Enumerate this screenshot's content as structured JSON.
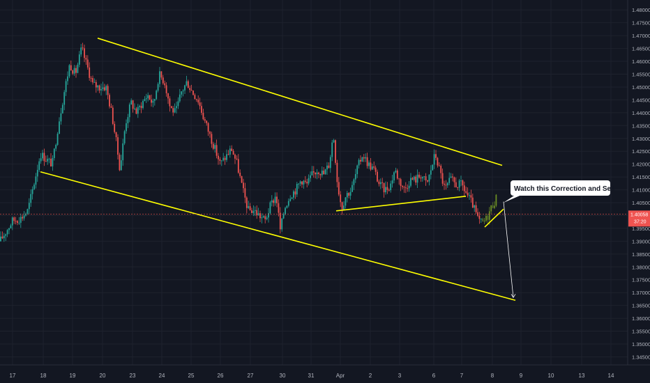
{
  "chart_data": {
    "type": "candlestick",
    "y_axis": {
      "side": "right",
      "ylim": [
        1.3435,
        1.4825
      ],
      "ticks": [
        "1.48000",
        "1.47500",
        "1.47000",
        "1.46500",
        "1.46000",
        "1.45500",
        "1.45000",
        "1.44500",
        "1.44000",
        "1.43500",
        "1.43000",
        "1.42500",
        "1.42000",
        "1.41500",
        "1.41000",
        "1.40500",
        "1.40000",
        "1.39500",
        "1.39000",
        "1.38500",
        "1.38000",
        "1.37500",
        "1.37000",
        "1.36500",
        "1.36000",
        "1.35500",
        "1.35000",
        "1.34500"
      ]
    },
    "x_axis": {
      "ticks": [
        "17",
        "18",
        "19",
        "20",
        "23",
        "24",
        "25",
        "26",
        "27",
        "30",
        "31",
        "Apr",
        "2",
        "3",
        "6",
        "7",
        "8",
        "9",
        "10",
        "13",
        "14"
      ]
    },
    "current_price": {
      "label": "1.40058",
      "countdown": "37:20",
      "value": 1.40058,
      "color": "#ef5350"
    },
    "colors": {
      "background": "#131722",
      "up": "#26a69a",
      "down": "#ef5350",
      "trendline": "#ffff00",
      "forecast": "#ffffff"
    },
    "annotations": [
      {
        "type": "callout",
        "text": "Watch this Correction  and Sell"
      }
    ],
    "trendlines": [
      {
        "name": "channel-upper",
        "points": [
          [
            "19",
            1.469
          ],
          [
            "9",
            1.4195
          ]
        ]
      },
      {
        "name": "channel-lower",
        "points": [
          [
            "18",
            1.417
          ],
          [
            "9",
            1.367
          ]
        ]
      },
      {
        "name": "triangle-support",
        "points": [
          [
            "31",
            1.4018
          ],
          [
            "7",
            1.4075
          ]
        ]
      },
      {
        "name": "correction-line",
        "points": [
          [
            "8",
            1.3955
          ],
          [
            "8",
            1.4025
          ]
        ]
      }
    ],
    "forecast_path": [
      [
        "8",
        1.407
      ],
      [
        "9",
        1.367
      ]
    ]
  }
}
